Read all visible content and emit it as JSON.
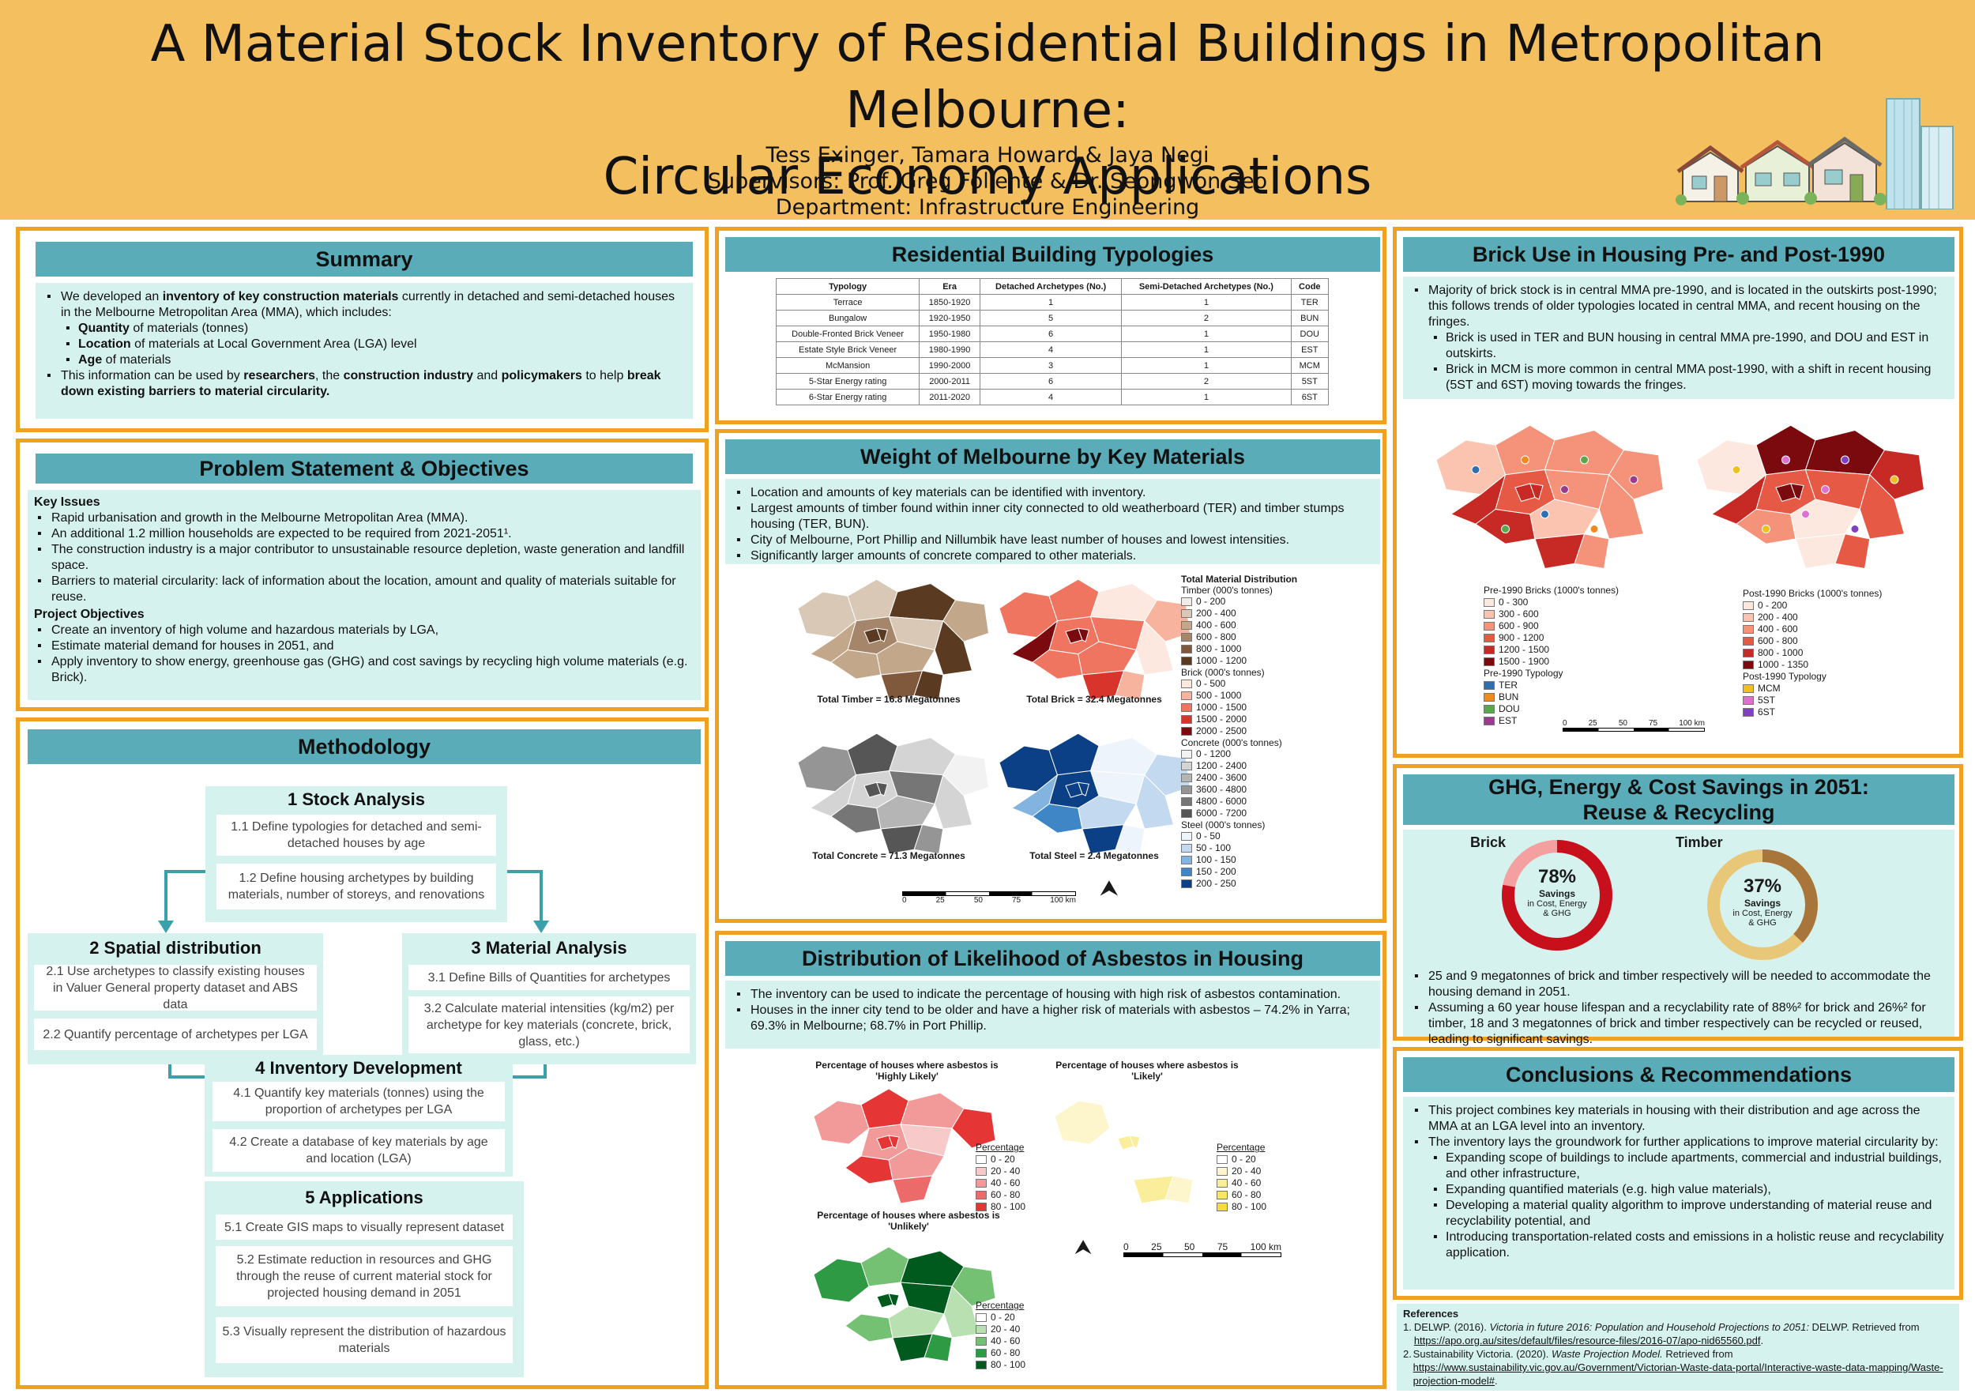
{
  "header": {
    "title_line1": "A Material Stock Inventory of Residential Buildings in Metropolitan Melbourne:",
    "title_line2": "Circular Economy Applications",
    "authors": "Tess Exinger, Tamara Howard & Jaya Negi",
    "supervisors": "Supervisors: Prof. Greg Foliente & Dr. Seongwon Seo",
    "department": "Department: Infrastructure Engineering"
  },
  "summary": {
    "title": "Summary",
    "p1_a": "We developed an ",
    "p1_b": "inventory of key construction materials",
    "p1_c": " currently in detached and semi-detached houses in the Melbourne Metropolitan Area (MMA), which includes:",
    "items": [
      {
        "bold": "Quantity",
        "rest": " of materials (tonnes)"
      },
      {
        "bold": "Location",
        "rest": " of materials at Local Government Area (LGA) level"
      },
      {
        "bold": "Age",
        "rest": " of materials"
      }
    ],
    "p2_a": "This information can be used by ",
    "p2_b": "researchers",
    "p2_c": ", the ",
    "p2_d": "construction industry",
    "p2_e": " and ",
    "p2_f": "policymakers",
    "p2_g": " to help ",
    "p2_h": "break down existing barriers to material circularity."
  },
  "problem": {
    "title": "Problem Statement & Objectives",
    "issues_head": "Key Issues",
    "issues": [
      "Rapid urbanisation and growth in the Melbourne Metropolitan Area (MMA).",
      "An additional 1.2 million households are expected to be required from 2021-2051¹.",
      "The construction industry is a major contributor to unsustainable resource depletion, waste generation and landfill space.",
      "Barriers to material circularity: lack of information about the location, amount and quality of materials suitable for reuse."
    ],
    "objectives_head": "Project Objectives",
    "objectives": [
      "Create an inventory of high volume and hazardous materials by LGA,",
      "Estimate material demand for houses in 2051, and",
      "Apply inventory to show energy, greenhouse gas (GHG) and cost savings by recycling high volume materials (e.g. Brick)."
    ]
  },
  "methodology": {
    "title": "Methodology",
    "s1": {
      "head": "1 Stock Analysis",
      "steps": [
        "1.1 Define typologies for detached and semi-detached houses by age",
        "1.2 Define housing archetypes by building materials, number of storeys, and renovations"
      ]
    },
    "s2": {
      "head": "2 Spatial distribution",
      "steps": [
        "2.1 Use archetypes to classify existing houses in Valuer General property dataset and ABS data",
        "2.2 Quantify percentage of archetypes per LGA"
      ]
    },
    "s3": {
      "head": "3 Material Analysis",
      "steps": [
        "3.1 Define Bills of Quantities for archetypes",
        "3.2 Calculate material intensities (kg/m2) per archetype for key materials (concrete, brick, glass, etc.)"
      ]
    },
    "s4": {
      "head": "4 Inventory Development",
      "steps": [
        "4.1 Quantify key materials (tonnes) using the proportion of archetypes per LGA",
        "4.2 Create a database of key materials by age and location (LGA)"
      ]
    },
    "s5": {
      "head": "5 Applications",
      "steps": [
        "5.1 Create GIS maps to visually represent dataset",
        "5.2 Estimate reduction in resources and GHG through the reuse of current material stock for projected housing demand in 2051",
        "5.3 Visually represent the distribution of hazardous materials"
      ]
    }
  },
  "typologies": {
    "title": "Residential Building Typologies",
    "headers": [
      "Typology",
      "Era",
      "Detached Archetypes (No.)",
      "Semi-Detached Archetypes (No.)",
      "Code"
    ],
    "rows": [
      [
        "Terrace",
        "1850-1920",
        "1",
        "1",
        "TER"
      ],
      [
        "Bungalow",
        "1920-1950",
        "5",
        "2",
        "BUN"
      ],
      [
        "Double-Fronted Brick Veneer",
        "1950-1980",
        "6",
        "1",
        "DOU"
      ],
      [
        "Estate Style Brick Veneer",
        "1980-1990",
        "4",
        "1",
        "EST"
      ],
      [
        "McMansion",
        "1990-2000",
        "3",
        "1",
        "MCM"
      ],
      [
        "5-Star Energy rating",
        "2000-2011",
        "6",
        "2",
        "5ST"
      ],
      [
        "6-Star Energy rating",
        "2011-2020",
        "4",
        "1",
        "6ST"
      ]
    ]
  },
  "weight": {
    "title": "Weight of Melbourne by Key Materials",
    "bullets": [
      "Location and amounts of key materials can be identified with inventory.",
      "Largest amounts of timber found within inner city connected to old weatherboard (TER) and timber stumps housing (TER, BUN).",
      "City of Melbourne, Port Phillip and Nillumbik have least number of houses and lowest intensities.",
      "Significantly larger amounts of concrete compared to other materials."
    ],
    "map_labels": [
      "Total Timber = 16.8 Megatonnes",
      "Total Brick = 32.4 Megatonnes",
      "Total Concrete = 71.3 Megatonnes",
      "Total Steel  = 2.4 Megatonnes"
    ],
    "legend_title": "Total Material Distribution",
    "legend_groups": [
      {
        "name": "Timber (000's tonnes)",
        "items": [
          "0 - 200",
          "200 - 400",
          "400 - 600",
          "600 - 800",
          "800 - 1000",
          "1000 - 1200"
        ],
        "colors": [
          "#f1ece6",
          "#d9c8b6",
          "#c2a78b",
          "#a6866a",
          "#80593d",
          "#5b3a22"
        ]
      },
      {
        "name": "Brick (000's tonnes)",
        "items": [
          "0 - 500",
          "500 - 1000",
          "1000 - 1500",
          "1500 - 2000",
          "2000 - 2500"
        ],
        "colors": [
          "#fde8e0",
          "#f7b39d",
          "#ef7560",
          "#d8342b",
          "#7a0a0e"
        ]
      },
      {
        "name": "Concrete (000's tonnes)",
        "items": [
          "0 - 1200",
          "1200 - 2400",
          "2400 - 3600",
          "3600 - 4800",
          "4800 - 6000",
          "6000 - 7200"
        ],
        "colors": [
          "#f2f2f2",
          "#d4d4d4",
          "#b5b5b5",
          "#959595",
          "#767676",
          "#565656"
        ]
      },
      {
        "name": "Steel (000's tonnes)",
        "items": [
          "0 - 50",
          "50 - 100",
          "100 - 150",
          "150 - 200",
          "200 - 250"
        ],
        "colors": [
          "#eef4fb",
          "#c2d9ef",
          "#82b4df",
          "#3f86c6",
          "#0b3f86"
        ]
      }
    ],
    "scale": [
      "0",
      "25",
      "50",
      "75",
      "100 km"
    ]
  },
  "asbestos": {
    "title": "Distribution of Likelihood of Asbestos in Housing",
    "bullets": [
      "The inventory can be used to indicate the percentage of housing with high risk of asbestos contamination.",
      "Houses in the inner city tend to be older and have a higher risk of materials with asbestos – 74.2% in Yarra; 69.3% in Melbourne; 68.7% in Port Phillip."
    ],
    "map1_title": "Percentage of houses where asbestos is 'Highly Likely'",
    "map2_title": "Percentage of houses where asbestos is 'Likely'",
    "map3_title": "Percentage of houses where asbestos is 'Unlikely'",
    "legend_head": "Percentage",
    "legend_items": [
      "0 - 20",
      "20 - 40",
      "40 - 60",
      "60 - 80",
      "80 - 100"
    ],
    "red": [
      "#ffffff",
      "#f8c9c9",
      "#f29a9a",
      "#ec6a6a",
      "#e53535"
    ],
    "yellow": [
      "#ffffff",
      "#fdf6cc",
      "#fbee9a",
      "#f9e566",
      "#f6dc33"
    ],
    "green": [
      "#ffffff",
      "#b8e0b0",
      "#74c174",
      "#2e9a44",
      "#005a1e"
    ],
    "scale": [
      "0",
      "25",
      "50",
      "75",
      "100 km"
    ]
  },
  "brick_use": {
    "title": "Brick Use in Housing Pre- and Post-1990",
    "b1": "Majority of brick stock is in central MMA pre-1990, and is located in the outskirts post-1990; this follows trends of older typologies located in central MMA, and recent housing on the fringes.",
    "b1_sub": [
      "Brick is used in TER and BUN housing in central MMA pre-1990, and DOU and EST in outskirts.",
      "Brick in MCM is more common in central MMA post-1990, with a shift in recent housing (5ST and 6ST) moving towards the fringes."
    ],
    "pre_legend_title": "Pre-1990 Bricks (1000's tonnes)",
    "pre_items": [
      "0 - 300",
      "300 - 600",
      "600 - 900",
      "900 - 1200",
      "1200 - 1500",
      "1500 - 1900"
    ],
    "pre_colors": [
      "#fde8e0",
      "#fbc4b0",
      "#f4937a",
      "#e65a45",
      "#c72a25",
      "#7a0a0e"
    ],
    "pre_typ_title": "Pre-1990 Typology",
    "pre_typ": [
      "TER",
      "BUN",
      "DOU",
      "EST"
    ],
    "pre_typ_colors": [
      "#2f6fb0",
      "#ef8a1f",
      "#5aa84a",
      "#9b3b8c"
    ],
    "post_legend_title": "Post-1990 Bricks (1000's tonnes)",
    "post_items": [
      "0 - 200",
      "200 - 400",
      "400 - 600",
      "600 - 800",
      "800 - 1000",
      "1000 - 1350"
    ],
    "post_colors": [
      "#fde8e0",
      "#fbc4b0",
      "#f4937a",
      "#e65a45",
      "#c72a25",
      "#7a0a0e"
    ],
    "post_typ_title": "Post-1990 Typology",
    "post_typ": [
      "MCM",
      "5ST",
      "6ST"
    ],
    "post_typ_colors": [
      "#f0c020",
      "#e070d0",
      "#8040c0"
    ],
    "scale": [
      "0",
      "25",
      "50",
      "75",
      "100 km"
    ]
  },
  "ghg": {
    "title_line1": "GHG, Energy & Cost Savings in 2051:",
    "title_line2": "Reuse & Recycling",
    "brick_label": "Brick",
    "timber_label": "Timber",
    "brick_pct": "78%",
    "timber_pct": "37%",
    "brick_value": 0.78,
    "timber_value": 0.37,
    "savings": "Savings",
    "savings_sub1": "in Cost, Energy",
    "savings_sub2": "& GHG",
    "brick_colors": [
      "#c8101c",
      "#f4a0a0"
    ],
    "timber_colors": [
      "#a8763a",
      "#e8c878"
    ],
    "bullets": [
      "25 and 9 megatonnes of brick and timber respectively will be needed to accommodate the housing demand in 2051.",
      "Assuming a 60 year house lifespan and a recyclability rate of  88%² for brick and 26%² for timber, 18 and 3 megatonnes of brick and timber respectively can be recycled or reused, leading to significant savings."
    ]
  },
  "conclusions": {
    "title": "Conclusions & Recommendations",
    "bullets": [
      "This project combines key materials in housing with their distribution and age across the MMA at an LGA level into an inventory.",
      "The inventory lays the groundwork for further applications to improve material circularity by:"
    ],
    "sub": [
      "Expanding scope of buildings to include apartments, commercial and industrial buildings, and other infrastructure,",
      "Expanding quantified materials (e.g. high value materials),",
      "Developing a material quality algorithm to improve understanding of material reuse and recyclability potential, and",
      "Introducing transportation-related costs and emissions in a holistic reuse and recyclability application."
    ]
  },
  "references": {
    "title": "References",
    "r1_a": "DELWP. (2016). ",
    "r1_b": "Victoria in future 2016: Population and Household Projections to 2051:",
    "r1_c": " DELWP. Retrieved from ",
    "r1_link": "https://apo.org.au/sites/default/files/resource-files/2016-07/apo-nid65560.pdf",
    "r1_d": ".",
    "r2_a": "Sustainability Victoria. (2020). ",
    "r2_b": "Waste Projection Model.",
    "r2_c": " Retrieved from ",
    "r2_link": "https://www.sustainability.vic.gov.au/Government/Victorian-Waste-data-portal/Interactive-waste-data-mapping/Waste-projection-model#",
    "r2_d": "."
  }
}
